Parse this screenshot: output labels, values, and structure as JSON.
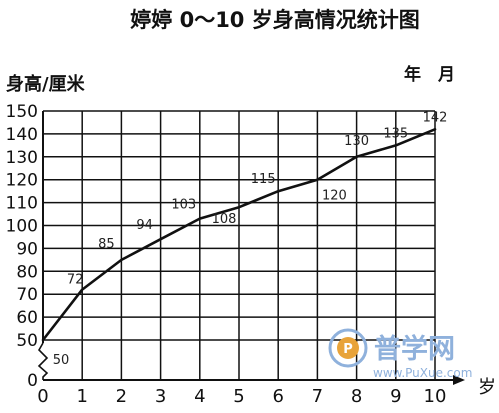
{
  "title": "婷婷 0～10 岁身高情况统计图",
  "date_label": "年　月",
  "watermark": {
    "text": "普学网",
    "url": "www.PuXue.com",
    "color": "#8fb1dc"
  },
  "chart_data": {
    "type": "line",
    "title": "婷婷 0～10 岁身高情况统计图",
    "ylabel": "身高/厘米",
    "xlabel": "岁",
    "ylim": [
      50,
      150
    ],
    "y_axis_break": true,
    "yticks": [
      0,
      50,
      60,
      70,
      80,
      90,
      100,
      110,
      120,
      130,
      140,
      150
    ],
    "x": [
      0,
      1,
      2,
      3,
      4,
      5,
      6,
      7,
      8,
      9,
      10
    ],
    "xticks": [
      "0",
      "1",
      "2",
      "3",
      "4",
      "5",
      "6",
      "7",
      "8",
      "9",
      "10"
    ],
    "values": [
      50,
      72,
      85,
      94,
      103,
      108,
      115,
      120,
      130,
      135,
      142
    ],
    "data_labels": [
      "50",
      "72",
      "85",
      "94",
      "103",
      "108",
      "115",
      "120",
      "130",
      "135",
      "142"
    ],
    "grid": true,
    "color": "#111111"
  }
}
